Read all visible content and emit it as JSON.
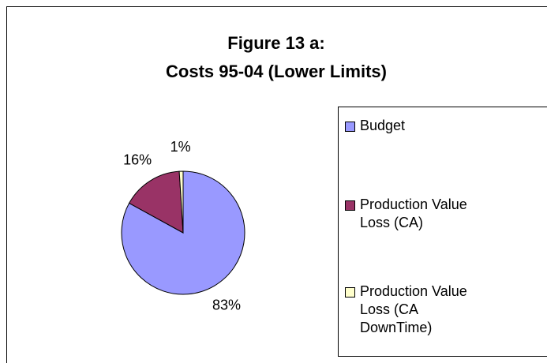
{
  "chart_data": {
    "type": "pie",
    "title": [
      "Figure 13 a:",
      "Costs 95-04 (Lower Limits)"
    ],
    "categories": [
      "Budget",
      "Production Value Loss (CA)",
      "Production Value Loss (CA DownTime)"
    ],
    "values": [
      83,
      16,
      1
    ],
    "value_labels": [
      "83%",
      "16%",
      "1%"
    ],
    "colors": [
      "#9999ff",
      "#993366",
      "#ffffcc"
    ],
    "legend": "right"
  }
}
